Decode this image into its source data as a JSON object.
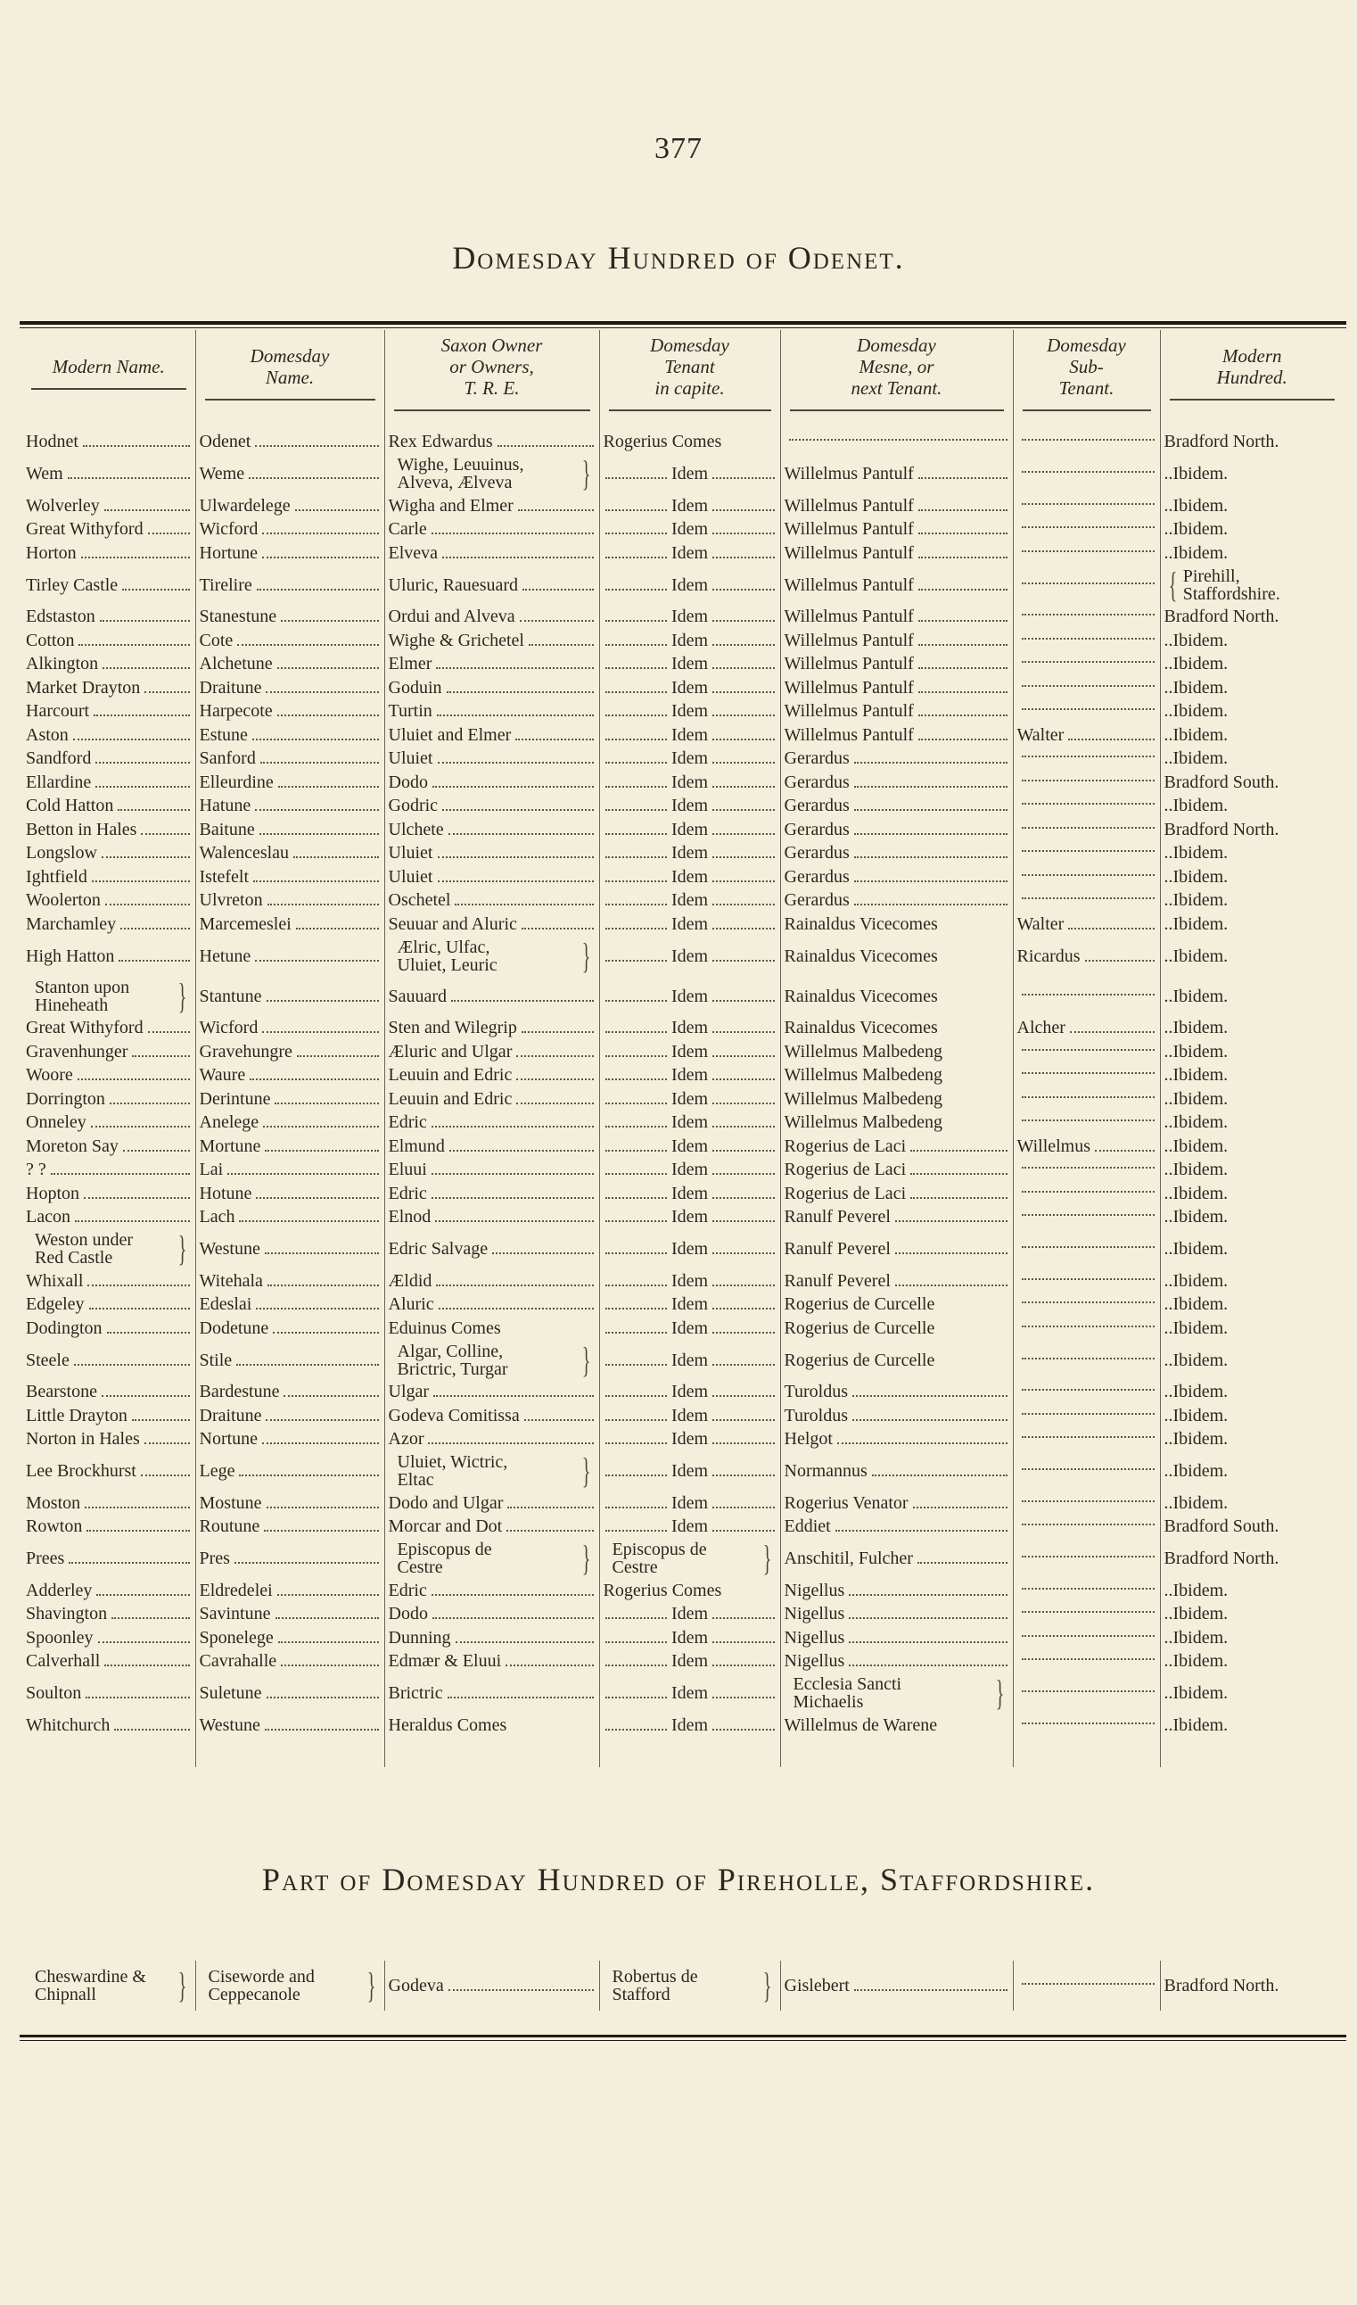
{
  "page_number": "377",
  "title": "Domesday Hundred of Odenet.",
  "headers": [
    "Modern Name.",
    "Domesday\nName.",
    "Saxon Owner\nor Owners,\nT. R. E.",
    "Domesday\nTenant\nin capite.",
    "Domesday\nMesne, or\nnext Tenant.",
    "Domesday\nSub-\nTenant.",
    "Modern\nHundred."
  ],
  "rows": [
    [
      "Hodnet",
      "Odenet",
      "Rex Edwardus",
      "Rogerius Comes",
      "",
      "",
      "Bradford North."
    ],
    [
      "Wem",
      "Weme",
      "Wighe, Leuuinus,\nAlveva, Ælveva",
      "Idem",
      "Willelmus Pantulf",
      "",
      "..Ibidem."
    ],
    [
      "Wolverley",
      "Ulwardelege",
      "Wigha and Elmer",
      "Idem",
      "Willelmus Pantulf",
      "",
      "..Ibidem."
    ],
    [
      "Great Withyford",
      "Wicford",
      "Carle",
      "Idem",
      "Willelmus Pantulf",
      "",
      "..Ibidem."
    ],
    [
      "Horton",
      "Hortune",
      "Elveva",
      "Idem",
      "Willelmus Pantulf",
      "",
      "..Ibidem."
    ],
    [
      "Tirley Castle",
      "Tirelire",
      "Uluric, Rauesuard",
      "Idem",
      "Willelmus Pantulf",
      "",
      "Pirehill,\n   Staffordshire."
    ],
    [
      "Edstaston",
      "Stanestune",
      "Ordui and Alveva",
      "Idem",
      "Willelmus Pantulf",
      "",
      "Bradford North."
    ],
    [
      "Cotton",
      "Cote",
      "Wighe & Grichetel",
      "Idem",
      "Willelmus Pantulf",
      "",
      "..Ibidem."
    ],
    [
      "Alkington",
      "Alchetune",
      "Elmer",
      "Idem",
      "Willelmus Pantulf",
      "",
      "..Ibidem."
    ],
    [
      "Market Drayton",
      "Draitune",
      "Goduin",
      "Idem",
      "Willelmus Pantulf",
      "",
      "..Ibidem."
    ],
    [
      "Harcourt",
      "Harpecote",
      "Turtin",
      "Idem",
      "Willelmus Pantulf",
      "",
      "..Ibidem."
    ],
    [
      "Aston",
      "Estune",
      "Uluiet and Elmer",
      "Idem",
      "Willelmus Pantulf",
      "Walter",
      "..Ibidem."
    ],
    [
      "Sandford",
      "Sanford",
      "Uluiet",
      "Idem",
      "Gerardus",
      "",
      "..Ibidem."
    ],
    [
      "Ellardine",
      "Elleurdine",
      "Dodo",
      "Idem",
      "Gerardus",
      "",
      "Bradford South."
    ],
    [
      "Cold Hatton",
      "Hatune",
      "Godric",
      "Idem",
      "Gerardus",
      "",
      "..Ibidem."
    ],
    [
      "Betton in Hales",
      "Baitune",
      "Ulchete",
      "Idem",
      "Gerardus",
      "",
      "Bradford North."
    ],
    [
      "Longslow",
      "Walenceslau",
      "Uluiet",
      "Idem",
      "Gerardus",
      "",
      "..Ibidem."
    ],
    [
      "Ightfield",
      "Istefelt",
      "Uluiet",
      "Idem",
      "Gerardus",
      "",
      "..Ibidem."
    ],
    [
      "Woolerton",
      "Ulvreton",
      "Oschetel",
      "Idem",
      "Gerardus",
      "",
      "..Ibidem."
    ],
    [
      "Marchamley",
      "Marcemeslei",
      "Seuuar and Aluric",
      "Idem",
      "Rainaldus Vicecomes",
      "Walter",
      "..Ibidem."
    ],
    [
      "High Hatton",
      "Hetune",
      "Ælric, Ulfac,\nUluiet, Leuric",
      "Idem",
      "Rainaldus Vicecomes",
      "Ricardus",
      "..Ibidem."
    ],
    [
      "Stanton upon\n  Hineheath",
      "Stantune",
      "Sauuard",
      "Idem",
      "Rainaldus Vicecomes",
      "",
      "..Ibidem."
    ],
    [
      "Great Withyford",
      "Wicford",
      "Sten and Wilegrip",
      "Idem",
      "Rainaldus Vicecomes",
      "Alcher",
      "..Ibidem."
    ],
    [
      "Gravenhunger",
      "Gravehungre",
      "Æluric and Ulgar",
      "Idem",
      "Willelmus Malbedeng",
      "",
      "..Ibidem."
    ],
    [
      "Woore",
      "Waure",
      "Leuuin and Edric",
      "Idem",
      "Willelmus Malbedeng",
      "",
      "..Ibidem."
    ],
    [
      "Dorrington",
      "Derintune",
      "Leuuin and Edric",
      "Idem",
      "Willelmus Malbedeng",
      "",
      "..Ibidem."
    ],
    [
      "Onneley",
      "Anelege",
      "Edric",
      "Idem",
      "Willelmus Malbedeng",
      "",
      "..Ibidem."
    ],
    [
      "Moreton Say",
      "Mortune",
      "Elmund",
      "Idem",
      "Rogerius de Laci",
      "Willelmus",
      "..Ibidem."
    ],
    [
      "   ?       ?",
      "Lai",
      "Eluui",
      "Idem",
      "Rogerius de Laci",
      "",
      "..Ibidem."
    ],
    [
      "Hopton",
      "Hotune",
      "Edric",
      "Idem",
      "Rogerius de Laci",
      "",
      "..Ibidem."
    ],
    [
      "Lacon",
      "Lach",
      "Elnod",
      "Idem",
      "Ranulf Peverel",
      "",
      "..Ibidem."
    ],
    [
      "Weston under\n  Red Castle",
      "Westune",
      "Edric Salvage",
      "Idem",
      "Ranulf Peverel",
      "",
      "..Ibidem."
    ],
    [
      "Whixall",
      "Witehala",
      "Ældid",
      "Idem",
      "Ranulf Peverel",
      "",
      "..Ibidem."
    ],
    [
      "Edgeley",
      "Edeslai",
      "Aluric",
      "Idem",
      "Rogerius de Curcelle",
      "",
      "..Ibidem."
    ],
    [
      "Dodington",
      "Dodetune",
      "Eduinus Comes",
      "Idem",
      "Rogerius de Curcelle",
      "",
      "..Ibidem."
    ],
    [
      "Steele",
      "Stile",
      "Algar, Colline,\n  Brictric, Turgar",
      "Idem",
      "Rogerius de Curcelle",
      "",
      "..Ibidem."
    ],
    [
      "Bearstone",
      "Bardestune",
      "Ulgar",
      "Idem",
      "Turoldus",
      "",
      "..Ibidem."
    ],
    [
      "Little Drayton",
      "Draitune",
      "Godeva Comitissa",
      "Idem",
      "Turoldus",
      "",
      "..Ibidem."
    ],
    [
      "Norton in Hales",
      "Nortune",
      "Azor",
      "Idem",
      "Helgot",
      "",
      "..Ibidem."
    ],
    [
      "Lee Brockhurst",
      "Lege",
      "Uluiet, Wictric,\n  Eltac",
      "Idem",
      "Normannus",
      "",
      "..Ibidem."
    ],
    [
      "Moston",
      "Mostune",
      "Dodo and Ulgar",
      "Idem",
      "Rogerius Venator",
      "",
      "..Ibidem."
    ],
    [
      "Rowton",
      "Routune",
      "Morcar and Dot",
      "Idem",
      "Eddiet",
      "",
      "Bradford South."
    ],
    [
      "Prees",
      "Pres",
      "Episcopus de\n  Cestre",
      "Episcopus de\n  Cestre",
      "Anschitil, Fulcher",
      "",
      "Bradford North."
    ],
    [
      "Adderley",
      "Eldredelei",
      "Edric",
      "Rogerius Comes",
      "Nigellus",
      "",
      "..Ibidem."
    ],
    [
      "Shavington",
      "Savintune",
      "Dodo",
      "Idem",
      "Nigellus",
      "",
      "..Ibidem."
    ],
    [
      "Spoonley",
      "Sponelege",
      "Dunning",
      "Idem",
      "Nigellus",
      "",
      "..Ibidem."
    ],
    [
      "Calverhall",
      "Cavrahalle",
      "Edmær & Eluui",
      "Idem",
      "Nigellus",
      "",
      "..Ibidem."
    ],
    [
      "Soulton",
      "Suletune",
      "Brictric",
      "Idem",
      "Ecclesia Sancti\n  Michaelis",
      "",
      "..Ibidem."
    ],
    [
      "Whitchurch",
      "Westune",
      "Heraldus Comes",
      "Idem",
      "Willelmus de Warene",
      "",
      "..Ibidem."
    ]
  ],
  "part_title": "Part of Domesday Hundred of Pireholle, Staffordshire.",
  "part_rows": [
    [
      "Cheswardine &\nChipnall",
      "Ciseworde and\nCeppecanole",
      "Godeva",
      "Robertus de\n  Stafford",
      "Gislebert",
      "",
      "Bradford North."
    ]
  ]
}
